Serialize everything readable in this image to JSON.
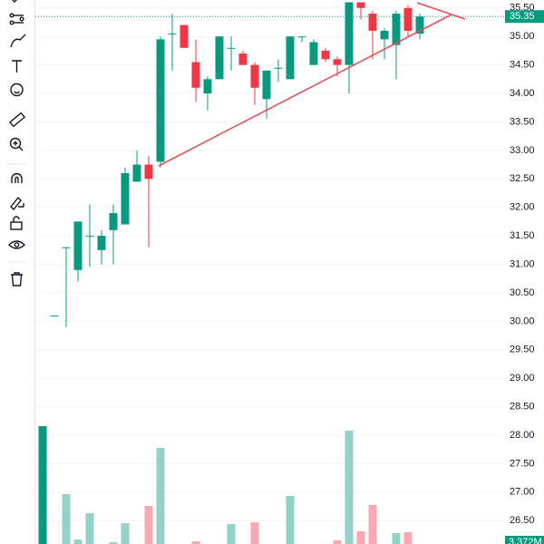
{
  "chart_data": {
    "type": "candlestick",
    "opens": [
      null,
      30.1,
      31.3,
      30.9,
      31.5,
      31.25,
      31.6,
      31.7,
      32.45,
      32.75,
      32.8,
      35.05,
      35.2,
      34.55,
      34.0,
      34.25,
      34.8,
      34.7,
      34.5,
      33.9,
      34.45,
      34.25,
      35.0,
      34.5,
      34.75,
      34.6,
      34.5,
      35.6,
      35.4,
      34.95,
      34.85,
      35.5,
      35.05
    ],
    "highs": [
      null,
      30.1,
      31.3,
      31.75,
      32.05,
      31.6,
      32.05,
      32.7,
      33.0,
      32.9,
      35.0,
      35.4,
      35.2,
      34.95,
      34.3,
      35.0,
      35.0,
      34.75,
      34.55,
      34.4,
      34.6,
      35.0,
      35.0,
      34.95,
      34.8,
      34.65,
      35.6,
      35.6,
      35.45,
      35.15,
      35.45,
      35.55,
      35.4
    ],
    "lows": [
      null,
      30.1,
      29.9,
      30.7,
      30.95,
      31.0,
      31.0,
      31.7,
      32.45,
      31.3,
      32.7,
      34.4,
      34.8,
      33.85,
      33.7,
      34.25,
      34.4,
      34.5,
      33.8,
      33.55,
      34.2,
      34.25,
      34.9,
      34.5,
      34.55,
      34.3,
      34.0,
      35.3,
      34.6,
      34.6,
      34.25,
      35.0,
      34.95
    ],
    "closes": [
      null,
      30.1,
      31.3,
      31.75,
      31.5,
      31.5,
      31.9,
      32.6,
      32.75,
      32.5,
      34.95,
      35.05,
      34.8,
      34.1,
      34.25,
      35.0,
      34.8,
      34.5,
      34.1,
      34.4,
      34.45,
      35.0,
      35.0,
      34.9,
      34.6,
      34.5,
      35.6,
      35.5,
      35.1,
      35.1,
      35.4,
      35.1,
      35.35
    ],
    "volumes": [
      130,
      0,
      55,
      5,
      34,
      0,
      2,
      23,
      0,
      42,
      106,
      0,
      0,
      3,
      0,
      0,
      22,
      0,
      24,
      0,
      0,
      53,
      0,
      0,
      0,
      4,
      125,
      14,
      43,
      0,
      12,
      13,
      0
    ],
    "up_color": "#089981",
    "down_color": "#f23645",
    "up_volume_color": "#92d2c7",
    "down_volume_color": "#f8a8b1",
    "ylim": [
      26.09,
      35.64
    ],
    "vlim": [
      0,
      600
    ],
    "yticks": [
      {
        "value": 35.5,
        "label": "35.50"
      },
      {
        "value": 35.0,
        "label": "35.00"
      },
      {
        "value": 34.5,
        "label": "34.50"
      },
      {
        "value": 34.0,
        "label": "34.00"
      },
      {
        "value": 33.5,
        "label": "33.50"
      },
      {
        "value": 33.0,
        "label": "33.00"
      },
      {
        "value": 32.5,
        "label": "32.50"
      },
      {
        "value": 32.0,
        "label": "32.00"
      },
      {
        "value": 31.5,
        "label": "31.50"
      },
      {
        "value": 31.0,
        "label": "31.00"
      },
      {
        "value": 30.5,
        "label": "30.50"
      },
      {
        "value": 30.0,
        "label": "30.00"
      },
      {
        "value": 29.5,
        "label": "29.50"
      },
      {
        "value": 29.0,
        "label": "29.00"
      },
      {
        "value": 28.5,
        "label": "28.50"
      },
      {
        "value": 28.0,
        "label": "28.00"
      },
      {
        "value": 27.5,
        "label": "27.50"
      },
      {
        "value": 27.0,
        "label": "27.00"
      },
      {
        "value": 26.5,
        "label": "26.50"
      }
    ],
    "last_price": {
      "value": 35.35,
      "label": "35.35"
    },
    "volume_label": "3.372M",
    "grid": true
  }
}
